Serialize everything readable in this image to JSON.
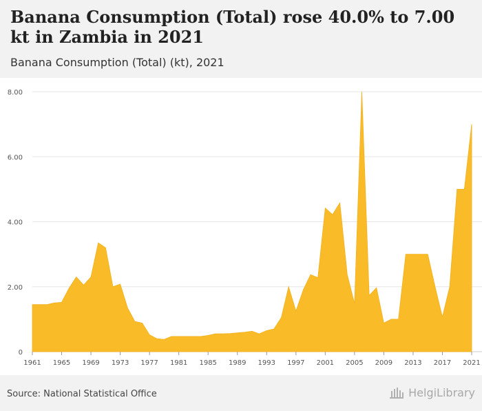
{
  "header": {
    "title": "Banana Consumption (Total) rose 40.0% to 7.00 kt in Zambia in 2021",
    "subtitle": "Banana Consumption (Total) (kt), 2021"
  },
  "footer": {
    "source": "Source: National Statistical Office",
    "logo_text": "HelgiLibrary"
  },
  "colors": {
    "fill": "#f9bc28",
    "grid": "#e6e6e6",
    "axis_text": "#555555"
  },
  "chart_data": {
    "type": "area",
    "title": "Banana Consumption (Total) (kt), 2021",
    "xlabel": "",
    "ylabel": "kt",
    "xlim": [
      1961,
      2021
    ],
    "ylim": [
      0,
      8
    ],
    "x": [
      1961,
      1962,
      1963,
      1964,
      1965,
      1966,
      1967,
      1968,
      1969,
      1970,
      1971,
      1972,
      1973,
      1974,
      1975,
      1976,
      1977,
      1978,
      1979,
      1980,
      1981,
      1982,
      1983,
      1984,
      1985,
      1986,
      1987,
      1988,
      1989,
      1990,
      1991,
      1992,
      1993,
      1994,
      1995,
      1996,
      1997,
      1998,
      1999,
      2000,
      2001,
      2002,
      2003,
      2004,
      2005,
      2006,
      2007,
      2008,
      2009,
      2010,
      2011,
      2012,
      2013,
      2014,
      2015,
      2016,
      2017,
      2018,
      2019,
      2020,
      2021
    ],
    "values": [
      1.45,
      1.45,
      1.45,
      1.5,
      1.52,
      1.95,
      2.3,
      2.05,
      2.3,
      3.35,
      3.2,
      2.0,
      2.08,
      1.35,
      0.93,
      0.88,
      0.52,
      0.4,
      0.38,
      0.47,
      0.47,
      0.47,
      0.47,
      0.47,
      0.5,
      0.55,
      0.55,
      0.56,
      0.58,
      0.6,
      0.63,
      0.55,
      0.65,
      0.7,
      1.05,
      2.0,
      1.25,
      1.9,
      2.37,
      2.28,
      4.42,
      4.22,
      4.58,
      2.38,
      1.48,
      8.0,
      1.73,
      1.97,
      0.88,
      1.0,
      1.0,
      3.0,
      3.0,
      3.0,
      3.0,
      2.0,
      1.07,
      2.0,
      5.0,
      5.0,
      7.0
    ],
    "y_ticks": [
      "0",
      "2.00",
      "4.00",
      "6.00",
      "8.00"
    ],
    "x_ticks": [
      "1961",
      "1965",
      "1969",
      "1973",
      "1977",
      "1981",
      "1985",
      "1989",
      "1993",
      "1997",
      "2001",
      "2005",
      "2009",
      "2013",
      "2017",
      "2021"
    ]
  }
}
